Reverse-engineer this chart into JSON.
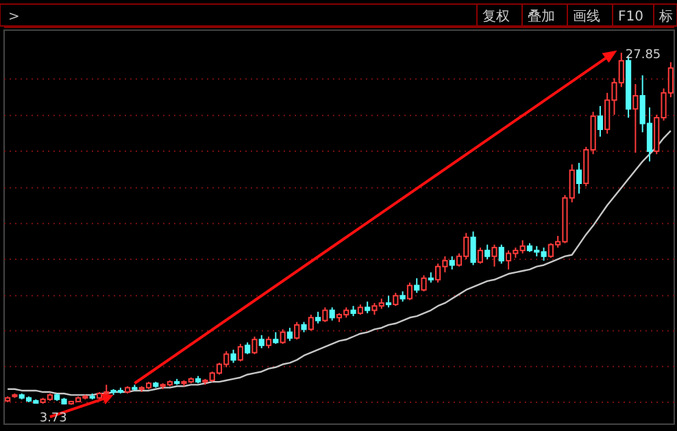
{
  "chart_data": {
    "type": "candlestick",
    "categories": [
      null,
      null,
      null,
      null,
      null,
      null,
      null,
      null,
      null,
      null,
      null,
      null,
      null,
      null,
      null,
      null,
      null,
      null,
      null,
      null,
      null,
      null,
      null,
      null,
      null,
      null,
      null,
      null,
      null,
      null,
      null,
      null,
      null,
      null,
      null,
      null,
      null,
      null,
      null,
      null,
      null,
      null,
      null,
      null,
      null,
      null,
      null,
      null,
      null,
      null,
      null,
      null,
      null,
      null,
      null,
      null,
      null,
      null,
      null,
      null,
      null,
      null,
      null,
      null,
      null,
      null,
      null,
      null,
      null,
      null,
      null,
      null,
      null,
      null,
      null,
      null,
      null,
      null,
      null,
      null,
      null,
      null,
      null,
      null,
      null,
      null,
      null,
      null,
      null,
      null,
      null,
      null,
      null,
      null,
      null
    ],
    "ohlc": [
      [
        4.0,
        4.3,
        3.9,
        4.2
      ],
      [
        4.3,
        4.5,
        4.2,
        4.4
      ],
      [
        4.4,
        4.5,
        4.1,
        4.2
      ],
      [
        4.2,
        4.3,
        3.9,
        4.0
      ],
      [
        4.0,
        4.1,
        3.8,
        3.85
      ],
      [
        3.9,
        4.2,
        3.8,
        4.1
      ],
      [
        4.1,
        4.5,
        4.0,
        4.4
      ],
      [
        4.4,
        4.5,
        4.0,
        4.1
      ],
      [
        4.1,
        4.2,
        3.75,
        3.8
      ],
      [
        3.8,
        4.0,
        3.73,
        3.95
      ],
      [
        3.95,
        4.3,
        3.9,
        4.2
      ],
      [
        4.2,
        4.4,
        4.1,
        4.3
      ],
      [
        4.3,
        4.5,
        4.1,
        4.2
      ],
      [
        4.2,
        4.6,
        4.1,
        4.5
      ],
      [
        4.5,
        5.1,
        4.4,
        4.6
      ],
      [
        4.6,
        4.8,
        4.4,
        4.7
      ],
      [
        4.7,
        4.9,
        4.5,
        4.6
      ],
      [
        4.6,
        5.0,
        4.5,
        4.9
      ],
      [
        4.9,
        5.1,
        4.7,
        4.8
      ],
      [
        4.8,
        5.0,
        4.6,
        4.9
      ],
      [
        4.9,
        5.3,
        4.8,
        5.2
      ],
      [
        5.2,
        5.3,
        4.9,
        5.0
      ],
      [
        5.0,
        5.2,
        4.8,
        5.1
      ],
      [
        5.1,
        5.4,
        5.0,
        5.3
      ],
      [
        5.3,
        5.5,
        5.1,
        5.2
      ],
      [
        5.2,
        5.4,
        5.0,
        5.3
      ],
      [
        5.3,
        5.6,
        5.2,
        5.5
      ],
      [
        5.5,
        5.7,
        5.2,
        5.3
      ],
      [
        5.3,
        5.5,
        5.1,
        5.4
      ],
      [
        5.4,
        6.0,
        5.3,
        5.9
      ],
      [
        5.9,
        6.6,
        5.8,
        6.5
      ],
      [
        6.5,
        7.4,
        6.3,
        7.2
      ],
      [
        7.2,
        7.5,
        6.6,
        6.8
      ],
      [
        6.8,
        7.9,
        6.7,
        7.7
      ],
      [
        7.8,
        8.0,
        7.2,
        7.3
      ],
      [
        7.3,
        8.4,
        7.2,
        8.2
      ],
      [
        8.2,
        8.5,
        7.6,
        7.8
      ],
      [
        7.8,
        8.4,
        7.6,
        8.2
      ],
      [
        8.2,
        8.7,
        7.9,
        8.0
      ],
      [
        8.0,
        8.9,
        7.9,
        8.7
      ],
      [
        8.7,
        9.0,
        8.1,
        8.3
      ],
      [
        8.3,
        9.4,
        8.2,
        9.2
      ],
      [
        9.2,
        9.4,
        8.7,
        8.9
      ],
      [
        8.9,
        9.9,
        8.8,
        9.7
      ],
      [
        9.7,
        10.1,
        9.3,
        9.5
      ],
      [
        9.5,
        10.4,
        9.4,
        10.2
      ],
      [
        10.2,
        10.4,
        9.5,
        9.7
      ],
      [
        9.7,
        10.0,
        9.4,
        9.9
      ],
      [
        9.9,
        10.4,
        9.7,
        10.2
      ],
      [
        10.2,
        10.5,
        9.8,
        10.0
      ],
      [
        10.0,
        10.6,
        9.9,
        10.4
      ],
      [
        10.4,
        10.8,
        10.0,
        10.2
      ],
      [
        10.2,
        10.7,
        9.9,
        10.5
      ],
      [
        10.5,
        11.0,
        10.3,
        10.7
      ],
      [
        10.7,
        11.2,
        10.4,
        10.6
      ],
      [
        10.6,
        11.4,
        10.5,
        11.2
      ],
      [
        11.2,
        11.5,
        10.8,
        11.0
      ],
      [
        11.0,
        12.1,
        10.9,
        11.9
      ],
      [
        11.9,
        12.4,
        11.4,
        11.6
      ],
      [
        11.6,
        12.6,
        11.5,
        12.4
      ],
      [
        12.4,
        12.8,
        12.1,
        12.3
      ],
      [
        12.3,
        13.4,
        12.1,
        13.2
      ],
      [
        13.2,
        13.9,
        12.8,
        13.6
      ],
      [
        13.6,
        13.9,
        13.0,
        13.3
      ],
      [
        13.3,
        14.1,
        13.2,
        13.9
      ],
      [
        13.9,
        15.5,
        13.7,
        15.2
      ],
      [
        15.2,
        15.6,
        13.3,
        13.5
      ],
      [
        13.5,
        14.5,
        13.4,
        14.3
      ],
      [
        14.3,
        14.7,
        13.7,
        13.9
      ],
      [
        13.9,
        14.7,
        13.2,
        14.5
      ],
      [
        14.5,
        14.7,
        13.4,
        13.6
      ],
      [
        13.6,
        14.3,
        13.0,
        14.1
      ],
      [
        14.1,
        14.5,
        13.8,
        14.3
      ],
      [
        14.3,
        15.0,
        14.1,
        14.6
      ],
      [
        14.6,
        14.8,
        14.2,
        14.3
      ],
      [
        14.3,
        14.6,
        13.9,
        14.2
      ],
      [
        14.2,
        14.5,
        13.6,
        13.9
      ],
      [
        13.9,
        14.8,
        13.8,
        14.7
      ],
      [
        14.7,
        15.3,
        14.5,
        14.9
      ],
      [
        14.9,
        18.1,
        14.8,
        17.9
      ],
      [
        17.9,
        20.2,
        17.6,
        19.8
      ],
      [
        19.8,
        20.3,
        18.2,
        18.9
      ],
      [
        18.9,
        21.4,
        18.7,
        21.2
      ],
      [
        21.2,
        23.8,
        20.9,
        23.5
      ],
      [
        23.5,
        24.2,
        22.1,
        22.6
      ],
      [
        22.6,
        25.1,
        22.3,
        24.6
      ],
      [
        24.6,
        26.1,
        23.6,
        25.8
      ],
      [
        25.8,
        27.85,
        25.5,
        27.3
      ],
      [
        27.3,
        27.6,
        23.4,
        24.0
      ],
      [
        24.0,
        25.7,
        21.0,
        24.9
      ],
      [
        24.9,
        26.3,
        22.4,
        23.0
      ],
      [
        23.0,
        24.1,
        20.4,
        21.1
      ],
      [
        21.1,
        23.6,
        20.9,
        23.4
      ],
      [
        23.4,
        25.4,
        23.2,
        25.1
      ],
      [
        25.1,
        27.2,
        24.8,
        26.8
      ]
    ],
    "colors": [
      "#ff3c3c",
      "#ff3c3c",
      "#54fcfc",
      "#54fcfc",
      "#54fcfc",
      "#ff3c3c",
      "#ff3c3c",
      "#54fcfc",
      "#54fcfc",
      "#ff3c3c",
      "#ff3c3c",
      "#ff3c3c",
      "#54fcfc",
      "#ff3c3c",
      "#ff3c3c",
      "#54fcfc",
      "#54fcfc",
      "#ff3c3c",
      "#54fcfc",
      "#ff3c3c",
      "#ff3c3c",
      "#54fcfc",
      "#ff3c3c",
      "#ff3c3c",
      "#54fcfc",
      "#ff3c3c",
      "#ff3c3c",
      "#54fcfc",
      "#ff3c3c",
      "#ff3c3c",
      "#ff3c3c",
      "#ff3c3c",
      "#54fcfc",
      "#ff3c3c",
      "#54fcfc",
      "#ff3c3c",
      "#54fcfc",
      "#ff3c3c",
      "#54fcfc",
      "#ff3c3c",
      "#54fcfc",
      "#ff3c3c",
      "#54fcfc",
      "#ff3c3c",
      "#54fcfc",
      "#ff3c3c",
      "#54fcfc",
      "#ff3c3c",
      "#ff3c3c",
      "#54fcfc",
      "#ff3c3c",
      "#54fcfc",
      "#ff3c3c",
      "#ff3c3c",
      "#54fcfc",
      "#ff3c3c",
      "#54fcfc",
      "#ff3c3c",
      "#54fcfc",
      "#ff3c3c",
      "#54fcfc",
      "#ff3c3c",
      "#ff3c3c",
      "#54fcfc",
      "#ff3c3c",
      "#ff3c3c",
      "#54fcfc",
      "#ff3c3c",
      "#54fcfc",
      "#ff3c3c",
      "#54fcfc",
      "#ff3c3c",
      "#ff3c3c",
      "#ff3c3c",
      "#54fcfc",
      "#54fcfc",
      "#54fcfc",
      "#ff3c3c",
      "#ff3c3c",
      "#ff3c3c",
      "#ff3c3c",
      "#54fcfc",
      "#ff3c3c",
      "#ff3c3c",
      "#54fcfc",
      "#ff3c3c",
      "#ff3c3c",
      "#ff3c3c",
      "#54fcfc",
      "#ff3c3c",
      "#54fcfc",
      "#54fcfc",
      "#ff3c3c",
      "#ff3c3c",
      "#ff3c3c"
    ],
    "series": [
      {
        "type": "line",
        "color": "#c8c8c8",
        "values": [
          4.8,
          4.8,
          4.7,
          4.7,
          4.7,
          4.6,
          4.6,
          4.5,
          4.5,
          4.4,
          4.4,
          4.4,
          4.4,
          4.5,
          4.5,
          4.6,
          4.6,
          4.6,
          4.7,
          4.7,
          4.7,
          4.8,
          4.9,
          4.9,
          5.0,
          5.0,
          5.1,
          5.1,
          5.2,
          5.3,
          5.3,
          5.4,
          5.5,
          5.6,
          5.8,
          5.9,
          6.0,
          6.2,
          6.3,
          6.5,
          6.6,
          6.8,
          7.1,
          7.3,
          7.5,
          7.7,
          7.9,
          8.1,
          8.2,
          8.4,
          8.6,
          8.7,
          8.9,
          9.0,
          9.2,
          9.3,
          9.5,
          9.7,
          9.8,
          10.0,
          10.2,
          10.5,
          10.7,
          11.0,
          11.3,
          11.6,
          11.8,
          12.0,
          12.2,
          12.3,
          12.5,
          12.7,
          12.8,
          12.9,
          13.0,
          13.2,
          13.3,
          13.5,
          13.7,
          13.9,
          14.0,
          14.7,
          15.4,
          16.0,
          16.7,
          17.4,
          18.0,
          18.6,
          19.2,
          19.8,
          20.4,
          20.9,
          21.4,
          22.0,
          22.5
        ]
      }
    ],
    "ylim": [
      2.4,
      29.4
    ],
    "yticks": [
      {
        "value": 3.9,
        "label": null
      },
      {
        "value": 6.35,
        "label": null
      },
      {
        "value": 8.8,
        "label": null
      },
      {
        "value": 11.2,
        "label": null
      },
      {
        "value": 13.7,
        "label": null
      },
      {
        "value": 16.15,
        "label": null
      },
      {
        "value": 18.6,
        "label": null
      },
      {
        "value": 21.1,
        "label": null
      },
      {
        "value": 23.55,
        "label": null
      },
      {
        "value": 26.05,
        "label": null
      }
    ],
    "grid": "y",
    "annotations": [
      ">",
      "复权",
      "叠加",
      "画线",
      "F10",
      "标",
      "27.85",
      "3.73"
    ]
  }
}
